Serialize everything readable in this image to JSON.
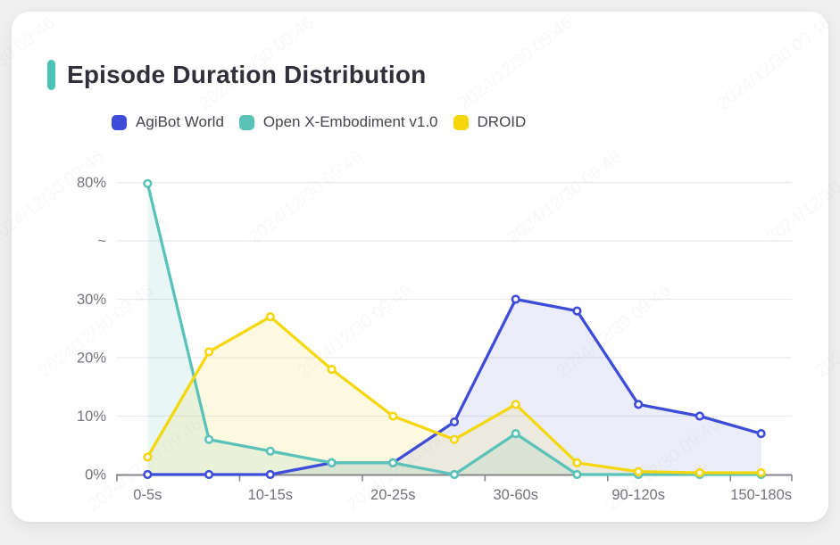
{
  "page": {
    "title": "Episode Duration Distribution"
  },
  "legend": {
    "items": [
      {
        "label": "AgiBot World",
        "color": "#3D4CD9"
      },
      {
        "label": "Open X-Embodiment v1.0",
        "color": "#5AC2B9"
      },
      {
        "label": "DROID",
        "color": "#F5D70E"
      }
    ]
  },
  "watermark": {
    "text": "2024/12/30 09:46"
  },
  "chart_data": {
    "type": "line",
    "title": "Episode Duration Distribution",
    "x_tick_labels": [
      "0-5s",
      "10-15s",
      "20-25s",
      "30-60s",
      "90-120s",
      "150-180s"
    ],
    "n_points": 11,
    "labeled_point_indices": [
      0,
      2,
      4,
      6,
      8,
      10
    ],
    "series": [
      {
        "name": "AgiBot World",
        "color": "#3D4CD9",
        "fill_opacity": 0.1,
        "values": [
          0,
          0,
          0,
          2,
          2,
          9,
          30,
          28,
          12,
          10,
          7
        ]
      },
      {
        "name": "Open X-Embodiment v1.0",
        "color": "#5AC2B9",
        "fill_opacity": 0.14,
        "values": [
          79.5,
          6,
          4,
          2,
          2,
          0,
          7,
          0,
          0,
          0,
          0
        ]
      },
      {
        "name": "DROID",
        "color": "#F5D70E",
        "fill_opacity": 0.12,
        "values": [
          3,
          21,
          27,
          18,
          10,
          6,
          12,
          2,
          0.5,
          0.3,
          0.3
        ]
      }
    ],
    "y_axis": {
      "unit": "%",
      "broken": true,
      "break_range": [
        30,
        80
      ],
      "ticks": [
        {
          "v": 0,
          "label": "0%"
        },
        {
          "v": 10,
          "label": "10%"
        },
        {
          "v": 20,
          "label": "20%"
        },
        {
          "v": 30,
          "label": "30%"
        },
        {
          "v": "break",
          "label": "~"
        },
        {
          "v": 80,
          "label": "80%"
        }
      ]
    },
    "legend_position": "top",
    "grid": true
  }
}
